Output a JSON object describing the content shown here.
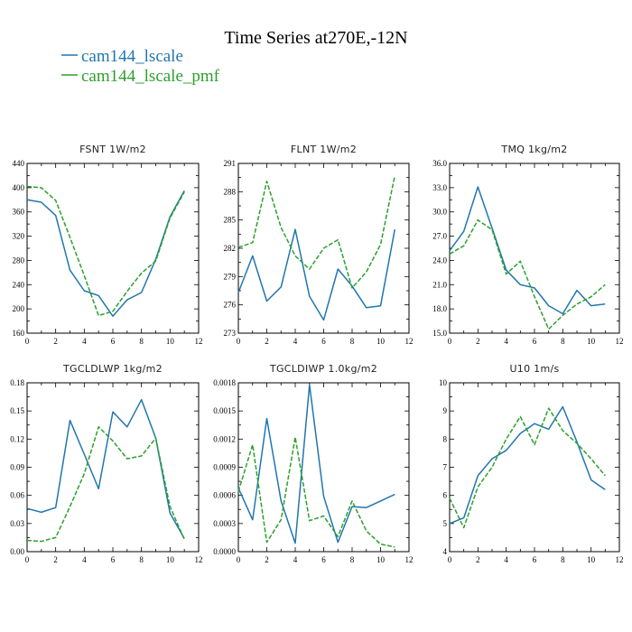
{
  "figure": {
    "title": "Time Series at270E,-12N"
  },
  "colors": {
    "series_1": "#2176ae",
    "series_2": "#2ca02c"
  },
  "chart_data": [
    {
      "type": "line",
      "title": "FSNT  1W/m2",
      "xlim": [
        0,
        12
      ],
      "ylim": [
        160,
        440
      ],
      "xticks": [
        0,
        2,
        4,
        6,
        8,
        10,
        12
      ],
      "yticks": [
        "160",
        "200",
        "240",
        "280",
        "320",
        "360",
        "400",
        "440"
      ],
      "x": [
        0,
        1,
        2,
        3,
        4,
        5,
        6,
        7,
        8,
        9,
        10,
        11
      ],
      "series": [
        {
          "name": "cam144_lscale",
          "values": [
            380,
            376,
            354,
            264,
            230,
            222,
            188,
            215,
            227,
            282,
            352,
            395
          ]
        },
        {
          "name": "cam144_lscale_pmf",
          "values": [
            402,
            400,
            379,
            318,
            255,
            189,
            196,
            229,
            259,
            279,
            350,
            393
          ]
        }
      ]
    },
    {
      "type": "line",
      "title": "FLNT   1W/m2",
      "xlim": [
        0,
        12
      ],
      "ylim": [
        273,
        291
      ],
      "xticks": [
        0,
        2,
        4,
        6,
        8,
        10,
        12
      ],
      "yticks": [
        "273",
        "276",
        "279",
        "282",
        "285",
        "288",
        "291"
      ],
      "x": [
        0,
        1,
        2,
        3,
        4,
        5,
        6,
        7,
        8,
        9,
        10,
        11
      ],
      "series": [
        {
          "name": "cam144_lscale",
          "values": [
            277.3,
            281.2,
            276.4,
            277.9,
            284.0,
            276.9,
            274.4,
            279.8,
            278.0,
            275.7,
            275.9,
            284.0
          ]
        },
        {
          "name": "cam144_lscale_pmf",
          "values": [
            282.1,
            282.6,
            289.1,
            284.2,
            281.2,
            279.8,
            282.0,
            282.9,
            277.8,
            279.5,
            282.4,
            289.7
          ]
        }
      ]
    },
    {
      "type": "line",
      "title": "TMQ   1kg/m2",
      "xlim": [
        0,
        12
      ],
      "ylim": [
        15,
        36
      ],
      "xticks": [
        0,
        2,
        4,
        6,
        8,
        10,
        12
      ],
      "yticks": [
        "15.0",
        "18.0",
        "21.0",
        "24.0",
        "27.0",
        "30.0",
        "33.0",
        "36.0"
      ],
      "x": [
        0,
        1,
        2,
        3,
        4,
        5,
        6,
        7,
        8,
        9,
        10,
        11
      ],
      "series": [
        {
          "name": "cam144_lscale",
          "values": [
            25.2,
            27.6,
            33.1,
            28.0,
            22.8,
            21.0,
            20.6,
            18.4,
            17.4,
            20.3,
            18.4,
            18.6
          ]
        },
        {
          "name": "cam144_lscale_pmf",
          "values": [
            24.8,
            25.8,
            29.0,
            27.8,
            22.3,
            23.9,
            19.5,
            15.5,
            17.2,
            18.6,
            19.5,
            21.0
          ]
        }
      ]
    },
    {
      "type": "line",
      "title": "TGCLDLWP   1kg/m2",
      "xlim": [
        0,
        12
      ],
      "ylim": [
        0,
        0.18
      ],
      "xticks": [
        0,
        2,
        4,
        6,
        8,
        10,
        12
      ],
      "yticks": [
        "0.00",
        "0.03",
        "0.06",
        "0.09",
        "0.12",
        "0.15",
        "0.18"
      ],
      "x": [
        0,
        1,
        2,
        3,
        4,
        5,
        6,
        7,
        8,
        9,
        10,
        11
      ],
      "series": [
        {
          "name": "cam144_lscale",
          "values": [
            0.046,
            0.042,
            0.047,
            0.14,
            0.104,
            0.067,
            0.149,
            0.133,
            0.162,
            0.121,
            0.041,
            0.014
          ]
        },
        {
          "name": "cam144_lscale_pmf",
          "values": [
            0.012,
            0.011,
            0.015,
            0.048,
            0.083,
            0.133,
            0.118,
            0.099,
            0.102,
            0.121,
            0.048,
            0.013
          ]
        }
      ]
    },
    {
      "type": "line",
      "title": "TGCLDIWP   1.0kg/m2",
      "xlim": [
        0,
        12
      ],
      "ylim": [
        0,
        0.0018
      ],
      "xticks": [
        0,
        2,
        4,
        6,
        8,
        10,
        12
      ],
      "yticks": [
        "0.0000",
        "0.0003",
        "0.0006",
        "0.0009",
        "0.0012",
        "0.0015",
        "0.0018"
      ],
      "x": [
        0,
        1,
        2,
        3,
        4,
        5,
        6,
        7,
        8,
        9,
        10,
        11
      ],
      "series": [
        {
          "name": "cam144_lscale",
          "values": [
            0.00068,
            0.00034,
            0.00142,
            0.00054,
            9e-05,
            0.00178,
            0.00059,
            0.0001,
            0.00048,
            0.00047,
            0.00054,
            0.00061
          ]
        },
        {
          "name": "cam144_lscale_pmf",
          "values": [
            0.00064,
            0.00114,
            0.0001,
            0.00034,
            0.00122,
            0.00033,
            0.00038,
            0.00016,
            0.00054,
            0.00022,
            8e-05,
            5e-05
          ]
        }
      ]
    },
    {
      "type": "line",
      "title": "U10   1m/s",
      "xlim": [
        0,
        12
      ],
      "ylim": [
        4,
        10
      ],
      "xticks": [
        0,
        2,
        4,
        6,
        8,
        10,
        12
      ],
      "yticks": [
        "4",
        "5",
        "6",
        "7",
        "8",
        "9",
        "10"
      ],
      "x": [
        0,
        1,
        2,
        3,
        4,
        5,
        6,
        7,
        8,
        9,
        10,
        11
      ],
      "series": [
        {
          "name": "cam144_lscale",
          "values": [
            5.0,
            5.2,
            6.7,
            7.3,
            7.6,
            8.2,
            8.55,
            8.35,
            9.15,
            7.9,
            6.55,
            6.2
          ]
        },
        {
          "name": "cam144_lscale_pmf",
          "values": [
            5.9,
            4.85,
            6.3,
            7.0,
            8.0,
            8.8,
            7.8,
            9.1,
            8.3,
            7.85,
            7.3,
            6.7
          ]
        }
      ]
    }
  ]
}
